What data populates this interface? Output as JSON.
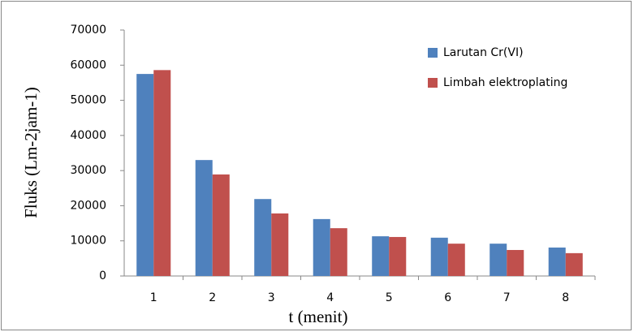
{
  "chart_data": {
    "type": "bar",
    "x_label": "t (menit)",
    "y_label": "Fluks (Lm-2jam-1)",
    "categories": [
      "1",
      "2",
      "3",
      "4",
      "5",
      "6",
      "7",
      "8"
    ],
    "series": [
      {
        "name": "Larutan Cr(VI)",
        "color": "#4f81bd",
        "values": [
          57500,
          33000,
          21900,
          16200,
          11300,
          10900,
          9200,
          8100
        ]
      },
      {
        "name": "Limbah elektroplating",
        "color": "#c0504d",
        "values": [
          58600,
          28900,
          17800,
          13600,
          11100,
          9200,
          7400,
          6500
        ]
      }
    ],
    "ylim": [
      0,
      70000
    ],
    "yticks": [
      0,
      10000,
      20000,
      30000,
      40000,
      50000,
      60000,
      70000
    ],
    "grid": false,
    "legend": "upper right"
  }
}
